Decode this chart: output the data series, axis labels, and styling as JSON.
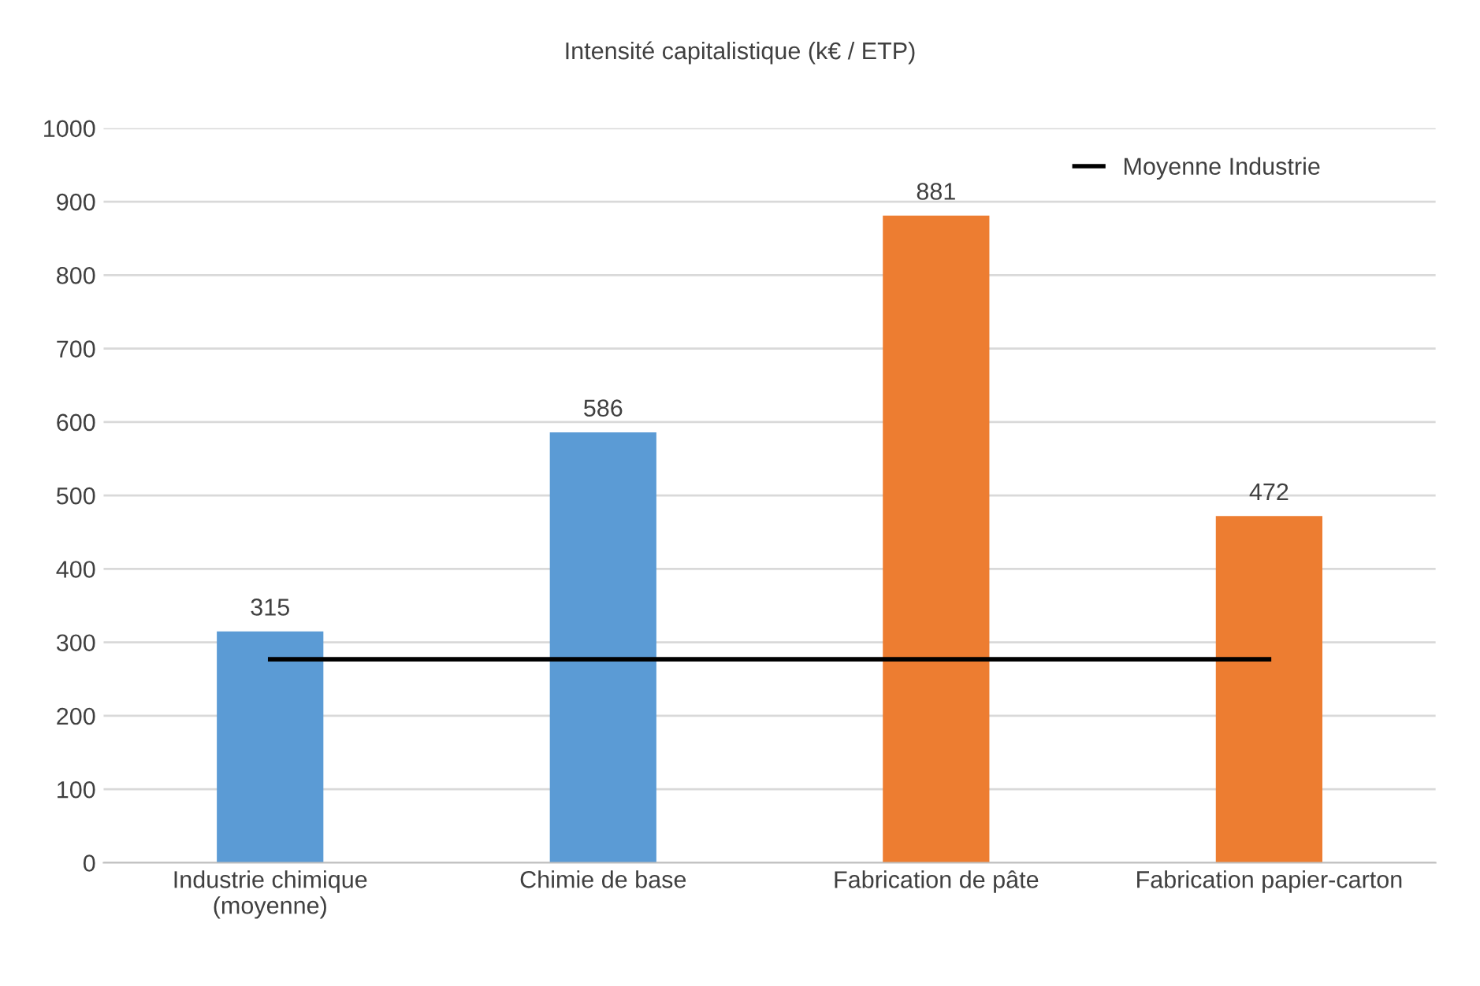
{
  "chart_data": {
    "type": "bar",
    "title": "Intensité capitalistique (k€ / ETP)",
    "categories": [
      "Industrie chimique\n(moyenne)",
      "Chimie de base",
      "Fabrication de pâte",
      "Fabrication papier-carton"
    ],
    "series": [
      {
        "colors": [
          "#5b9bd5",
          "#5b9bd5",
          "#ed7d31",
          "#ed7d31"
        ],
        "values": [
          315,
          586,
          881,
          472
        ],
        "value_labels": [
          "315",
          "586",
          "881",
          "472"
        ]
      },
      {
        "type": "line",
        "name": "Moyenne Industrie",
        "color": "#000000",
        "values": [
          277,
          277,
          277,
          277
        ],
        "marker": "none",
        "line_style": "solid"
      }
    ],
    "ylim": [
      0,
      1000
    ],
    "yticks": [
      0,
      100,
      200,
      300,
      400,
      500,
      600,
      700,
      800,
      900,
      1000
    ],
    "grid": "y",
    "legend": "top right"
  }
}
